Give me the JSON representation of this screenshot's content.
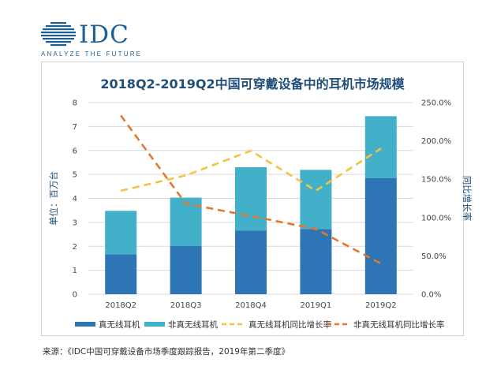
{
  "logo": {
    "text": "IDC",
    "tagline": "ANALYZE THE FUTURE",
    "color": "#1c5f94"
  },
  "source": "来源：《IDC中国可穿戴设备市场季度跟踪报告，2019年第二季度》",
  "chart_data": {
    "type": "bar",
    "title": "2018Q2-2019Q2中国可穿戴设备中的耳机市场规模",
    "ylabel": "单位：百万台",
    "y2label": "同比增长率",
    "categories": [
      "2018Q2",
      "2018Q3",
      "2018Q4",
      "2019Q1",
      "2019Q2"
    ],
    "ylim": [
      0,
      8
    ],
    "yticks": [
      "0",
      "1",
      "2",
      "3",
      "4",
      "5",
      "6",
      "7",
      "8"
    ],
    "y2lim": [
      0,
      250
    ],
    "y2ticks": [
      "0.0%",
      "50.0%",
      "100.0%",
      "150.0%",
      "200.0%",
      "250.0%"
    ],
    "stacked": true,
    "series": [
      {
        "name": "真无线耳机",
        "kind": "bar",
        "axis": "left",
        "color": "#2e75b6",
        "values": [
          1.67,
          2.02,
          2.65,
          2.72,
          4.85
        ]
      },
      {
        "name": "非真无线耳机",
        "kind": "bar",
        "axis": "left",
        "color": "#41b0c8",
        "values": [
          1.81,
          2.01,
          2.65,
          2.47,
          2.58
        ]
      },
      {
        "name": "真无线耳机同比增长率",
        "kind": "line",
        "axis": "right",
        "color": "#f5c342",
        "values": [
          135,
          155,
          187,
          135,
          190
        ]
      },
      {
        "name": "非真无线耳机同比增长率",
        "kind": "line",
        "axis": "right",
        "color": "#e2792a",
        "values": [
          233,
          118,
          102,
          85,
          40
        ]
      }
    ],
    "legend_position": "bottom",
    "grid": true
  }
}
